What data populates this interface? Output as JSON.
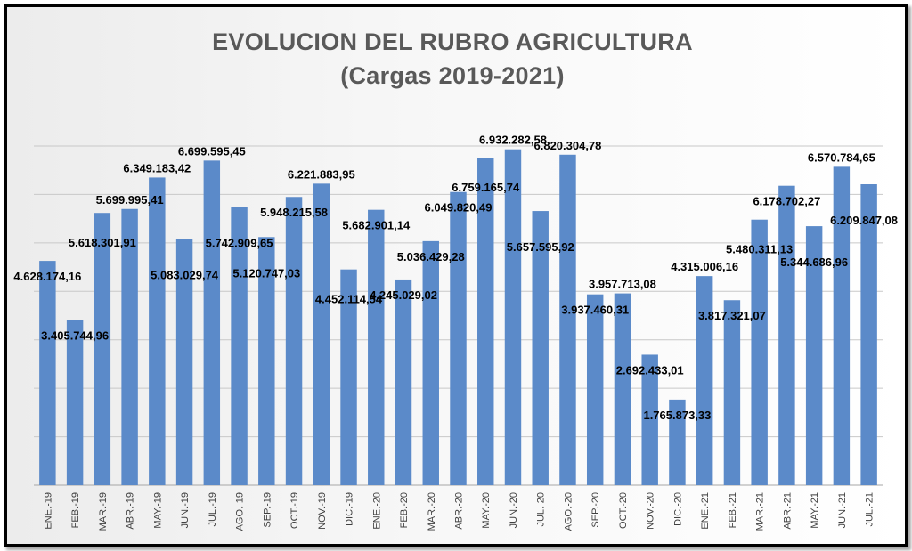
{
  "chart_data": {
    "type": "bar",
    "title_line1": "EVOLUCION DEL RUBRO AGRICULTURA",
    "title_line2": "(Cargas 2019-2021)",
    "xlabel": "",
    "ylabel": "",
    "ylim": [
      0,
      7000000
    ],
    "y_gridline_step": 1000000,
    "y_tick_labels_shown": false,
    "grid": true,
    "legend": "none",
    "bar_color": "#5b8ac9",
    "categories": [
      "ENE.-19",
      "FEB.-19",
      "MAR.-19",
      "ABR.-19",
      "MAY.-19",
      "JUN.-19",
      "JUL.-19",
      "AGO.-19",
      "SEP.-19",
      "OCT.-19",
      "NOV.-19",
      "DIC.-19",
      "ENE.-20",
      "FEB.-20",
      "MAR.-20",
      "ABR.-20",
      "MAY.-20",
      "JUN.-20",
      "JUL.-20",
      "AGO.-20",
      "SEP.-20",
      "OCT.-20",
      "NOV.-20",
      "DIC.-20",
      "ENE.-21",
      "FEB.-21",
      "MAR.-21",
      "ABR.-21",
      "MAY.-21",
      "JUN.-21",
      "JUL.-21"
    ],
    "values": [
      4628174.16,
      3405744.96,
      5618301.91,
      5699995.41,
      6349183.42,
      5083029.74,
      6699595.45,
      5742909.65,
      5120747.03,
      5948215.58,
      6221883.95,
      4452114.54,
      5682901.14,
      4245029.02,
      5036429.28,
      6049820.49,
      6759165.74,
      6932282.58,
      5657595.92,
      6820304.78,
      3937460.31,
      3957713.08,
      2692433.01,
      1765873.33,
      4315006.16,
      3817321.07,
      5480311.13,
      6178702.27,
      5344686.96,
      6570784.65,
      6209847.08
    ],
    "data_labels": [
      "4.628.174,16",
      "3.405.744,96",
      "5.618.301,91",
      "5.699.995,41",
      "6.349.183,42",
      "5.083.029,74",
      "6.699.595,45",
      "5.742.909,65",
      "5.120.747,03",
      "5.948.215,58",
      "6.221.883,95",
      "4.452.114,54",
      "5.682.901,14",
      "4.245.029,02",
      "5.036.429,28",
      "6.049.820,49",
      "6.759.165,74",
      "6.932.282,58",
      "5.657.595,92",
      "6.820.304,78",
      "3.937.460,31",
      "3.957.713,08",
      "2.692.433,01",
      "1.765.873,33",
      "4.315.006,16",
      "3.817.321,07",
      "5.480.311,13",
      "6.178.702,27",
      "5.344.686,96",
      "6.570.784,65",
      "6.209.847,08"
    ],
    "label_positions": [
      "left-above",
      "below",
      "left-below",
      "above",
      "above",
      "inside",
      "above",
      "inside",
      "inside",
      "left-above",
      "above",
      "left-below",
      "left-above",
      "below",
      "left-above",
      "left-above",
      "left-below",
      "above",
      "inside",
      "above",
      "below",
      "above",
      "below",
      "below",
      "above",
      "below",
      "left-below",
      "left-above",
      "inside",
      "above",
      "inside"
    ]
  }
}
